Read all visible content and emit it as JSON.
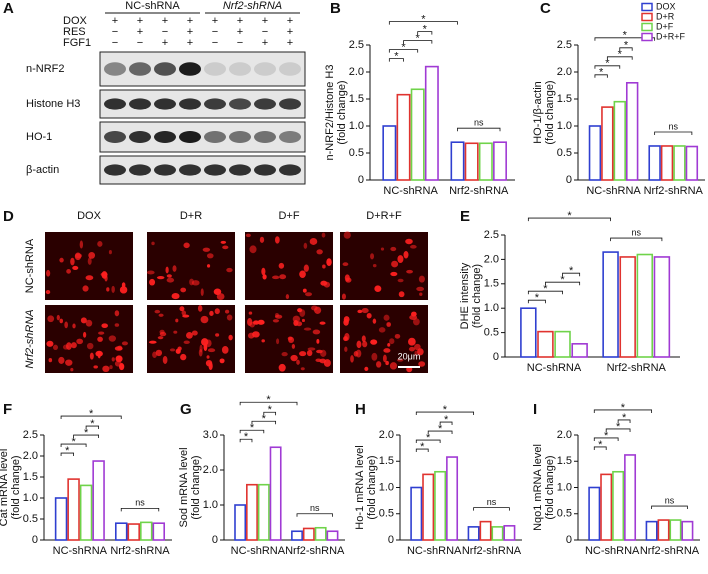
{
  "panel_a": {
    "letter": "A",
    "groups": [
      "NC-shRNA",
      "Nrf2-shRNA"
    ],
    "treatments": [
      {
        "name": "DOX",
        "signs": [
          "+",
          "+",
          "+",
          "+",
          "+",
          "+",
          "+",
          "+"
        ]
      },
      {
        "name": "RES",
        "signs": [
          "−",
          "+",
          "−",
          "+",
          "−",
          "+",
          "−",
          "+"
        ]
      },
      {
        "name": "FGF1",
        "signs": [
          "−",
          "−",
          "+",
          "+",
          "−",
          "−",
          "+",
          "+"
        ]
      }
    ],
    "blots": [
      "n-NRF2",
      "Histone H3",
      "HO-1",
      "β-actin"
    ]
  },
  "panel_d": {
    "letter": "D",
    "columns": [
      "DOX",
      "D+R",
      "D+F",
      "D+R+F"
    ],
    "rows": [
      "NC-shRNA",
      "Nrf2-shRNA"
    ],
    "scale_bar": "20μm"
  },
  "chart_data": [
    {
      "type": "bar",
      "letter": "B",
      "ylabel": [
        "n-NRF2/Histone H3",
        "(fold change)"
      ],
      "categories": [
        "NC-shRNA",
        "Nrf2-shRNA"
      ],
      "series": [
        {
          "color": "#2f3fd0",
          "values": [
            1.0,
            0.7
          ]
        },
        {
          "color": "#e0332f",
          "values": [
            1.58,
            0.68
          ]
        },
        {
          "color": "#6fd34a",
          "values": [
            1.68,
            0.68
          ]
        },
        {
          "color": "#a03ad4",
          "values": [
            2.1,
            0.7
          ]
        }
      ],
      "ylim": [
        0,
        2.5
      ],
      "yticks": [
        0,
        0.5,
        {
          "value": 1,
          "label": "1.0"
        },
        1.5,
        {
          "value": 2,
          "label": "2.0"
        },
        2.5
      ],
      "annotations": [
        "*",
        "*",
        "*",
        "*",
        "*",
        "ns"
      ]
    },
    {
      "type": "bar",
      "letter": "C",
      "ylabel": [
        "HO-1/β-actin",
        "(fold change)"
      ],
      "categories": [
        "NC-shRNA",
        "Nrf2-shRNA"
      ],
      "series": [
        {
          "name": "DOX",
          "color": "#2f3fd0",
          "values": [
            1.0,
            0.63
          ]
        },
        {
          "name": "D+R",
          "color": "#e0332f",
          "values": [
            1.35,
            0.63
          ]
        },
        {
          "name": "D+F",
          "color": "#6fd34a",
          "values": [
            1.45,
            0.63
          ]
        },
        {
          "name": "D+R+F",
          "color": "#a03ad4",
          "values": [
            1.8,
            0.62
          ]
        }
      ],
      "ylim": [
        0,
        2.5
      ],
      "yticks": [
        0,
        0.5,
        {
          "value": 1,
          "label": "1.0"
        },
        1.5,
        {
          "value": 2,
          "label": "2.0"
        },
        2.5
      ],
      "annotations": [
        "*",
        "*",
        "*",
        "*",
        "*",
        "ns"
      ],
      "legend": "top-right"
    },
    {
      "type": "bar",
      "letter": "E",
      "ylabel": [
        "DHE intensity",
        "(fold change)"
      ],
      "categories": [
        "NC-shRNA",
        "Nrf2-shRNA"
      ],
      "series": [
        {
          "color": "#2f3fd0",
          "values": [
            1.0,
            2.15
          ]
        },
        {
          "color": "#e0332f",
          "values": [
            0.52,
            2.05
          ]
        },
        {
          "color": "#6fd34a",
          "values": [
            0.52,
            2.1
          ]
        },
        {
          "color": "#a03ad4",
          "values": [
            0.27,
            2.05
          ]
        }
      ],
      "ylim": [
        0,
        2.5
      ],
      "yticks": [
        0,
        0.5,
        {
          "value": 1,
          "label": "1.0"
        },
        1.5,
        {
          "value": 2,
          "label": "2.0"
        },
        2.5
      ],
      "annotations": [
        "*",
        "*",
        "*",
        "*",
        "*",
        "ns"
      ]
    },
    {
      "type": "bar",
      "letter": "F",
      "ylabel": [
        "Cat mRNA level",
        "(fold change)"
      ],
      "categories": [
        "NC-shRNA",
        "Nrf2-shRNA"
      ],
      "series": [
        {
          "color": "#2f3fd0",
          "values": [
            1.0,
            0.4
          ]
        },
        {
          "color": "#e0332f",
          "values": [
            1.45,
            0.38
          ]
        },
        {
          "color": "#6fd34a",
          "values": [
            1.3,
            0.42
          ]
        },
        {
          "color": "#a03ad4",
          "values": [
            1.88,
            0.4
          ]
        }
      ],
      "ylim": [
        0,
        2.5
      ],
      "yticks": [
        0,
        0.5,
        {
          "value": 1,
          "label": "1.0"
        },
        1.5,
        {
          "value": 2,
          "label": "2.0"
        },
        2.5
      ],
      "annotations": [
        "*",
        "*",
        "*",
        "*",
        "*",
        "ns"
      ]
    },
    {
      "type": "bar",
      "letter": "G",
      "ylabel": [
        "Sod mRNA level",
        "(fold change)"
      ],
      "categories": [
        "NC-shRNA",
        "Nrf2-shRNA"
      ],
      "series": [
        {
          "color": "#2f3fd0",
          "values": [
            1.0,
            0.25
          ]
        },
        {
          "color": "#e0332f",
          "values": [
            1.58,
            0.33
          ]
        },
        {
          "color": "#6fd34a",
          "values": [
            1.58,
            0.35
          ]
        },
        {
          "color": "#a03ad4",
          "values": [
            2.65,
            0.25
          ]
        }
      ],
      "ylim": [
        0,
        3
      ],
      "yticks": [
        0,
        {
          "value": 1,
          "label": "1.0"
        },
        {
          "value": 2,
          "label": "2.0"
        },
        {
          "value": 3,
          "label": "3.0"
        }
      ],
      "annotations": [
        "*",
        "*",
        "*",
        "*",
        "*",
        "ns"
      ]
    },
    {
      "type": "bar",
      "letter": "H",
      "ylabel": [
        "Ho-1 mRNA level",
        "(fold change)"
      ],
      "categories": [
        "NC-shRNA",
        "Nrf2-shRNA"
      ],
      "series": [
        {
          "color": "#2f3fd0",
          "values": [
            1.0,
            0.25
          ]
        },
        {
          "color": "#e0332f",
          "values": [
            1.25,
            0.35
          ]
        },
        {
          "color": "#6fd34a",
          "values": [
            1.3,
            0.25
          ]
        },
        {
          "color": "#a03ad4",
          "values": [
            1.58,
            0.27
          ]
        }
      ],
      "ylim": [
        0,
        2
      ],
      "yticks": [
        0,
        0.5,
        {
          "value": 1,
          "label": "1.0"
        },
        1.5,
        {
          "value": 2,
          "label": "2.0"
        }
      ],
      "annotations": [
        "*",
        "*",
        "*",
        "*",
        "*",
        "ns"
      ]
    },
    {
      "type": "bar",
      "letter": "I",
      "ylabel": [
        "Nqo1 mRNA level",
        "(fold change)"
      ],
      "categories": [
        "NC-shRNA",
        "Nrf2-shRNA"
      ],
      "series": [
        {
          "color": "#2f3fd0",
          "values": [
            1.0,
            0.35
          ]
        },
        {
          "color": "#e0332f",
          "values": [
            1.25,
            0.38
          ]
        },
        {
          "color": "#6fd34a",
          "values": [
            1.3,
            0.38
          ]
        },
        {
          "color": "#a03ad4",
          "values": [
            1.62,
            0.35
          ]
        }
      ],
      "ylim": [
        0,
        2
      ],
      "yticks": [
        0,
        0.5,
        {
          "value": 1,
          "label": "1.0"
        },
        1.5,
        {
          "value": 2,
          "label": "2.0"
        }
      ],
      "annotations": [
        "*",
        "*",
        "*",
        "*",
        "*",
        "ns"
      ]
    }
  ]
}
